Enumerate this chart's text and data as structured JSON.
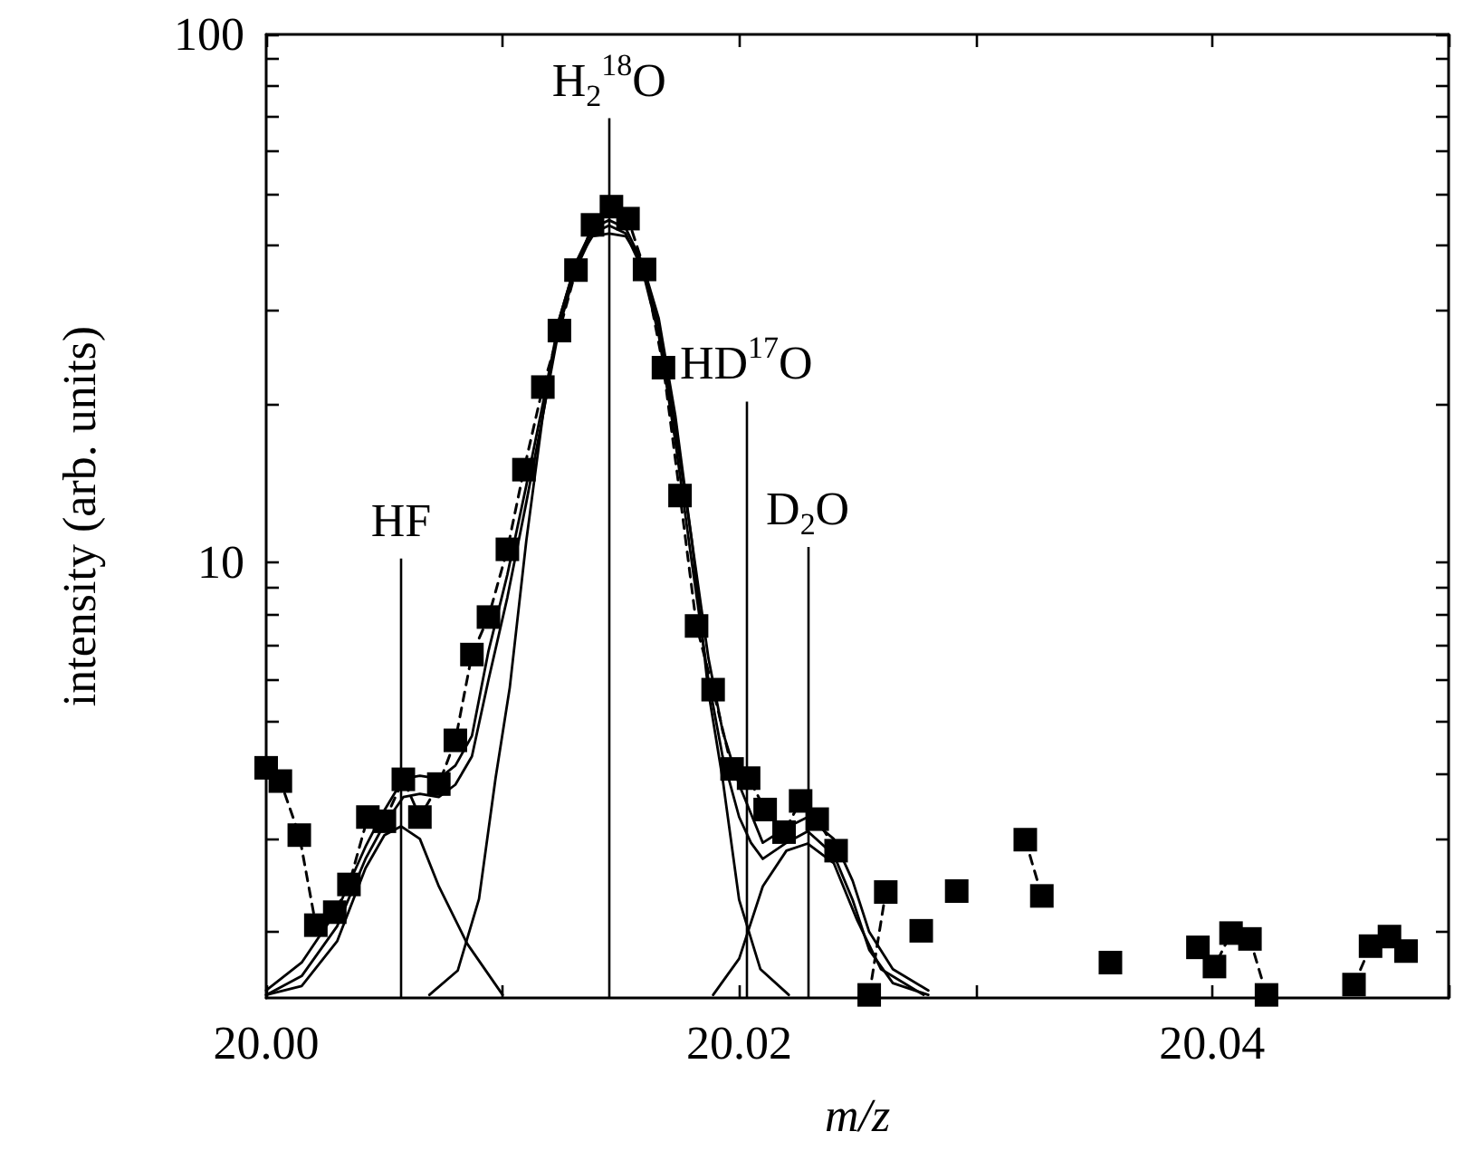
{
  "chart_data": {
    "type": "line",
    "xlabel": "m/z",
    "ylabel": "intensity (arb. units)",
    "log": "y",
    "grid": false,
    "xlim": [
      20.0,
      20.05
    ],
    "xticks": [
      {
        "value": 20.0,
        "label": "20.00"
      },
      {
        "value": 20.01,
        "label": null
      },
      {
        "value": 20.02,
        "label": "20.02"
      },
      {
        "value": 20.03,
        "label": null
      },
      {
        "value": 20.04,
        "label": "20.04"
      },
      {
        "value": 20.05,
        "label": null
      }
    ],
    "ylim": [
      1.5,
      100
    ],
    "yticks": [
      {
        "value": 2,
        "label": null
      },
      {
        "value": 3,
        "label": null
      },
      {
        "value": 4,
        "label": null
      },
      {
        "value": 5,
        "label": null
      },
      {
        "value": 6,
        "label": null
      },
      {
        "value": 7,
        "label": null
      },
      {
        "value": 8,
        "label": null
      },
      {
        "value": 9,
        "label": null
      },
      10,
      {
        "value": 20,
        "label": null
      },
      {
        "value": 30,
        "label": null
      },
      {
        "value": 40,
        "label": null
      },
      {
        "value": 50,
        "label": null
      },
      {
        "value": 60,
        "label": null
      },
      {
        "value": 70,
        "label": null
      },
      {
        "value": 80,
        "label": null
      },
      {
        "value": 90,
        "label": null
      },
      100
    ],
    "ref_lines": [
      {
        "axis": "x",
        "value": 20.0057,
        "label": "HF",
        "color": "#000000"
      },
      {
        "axis": "x",
        "value": 20.0145,
        "label": "H$_{2}$$^{18}$O",
        "color": "#000000"
      },
      {
        "axis": "x",
        "value": 20.0203,
        "label": "HD$^{17}$O",
        "color": "#000000"
      },
      {
        "axis": "x",
        "value": 20.0229,
        "label": "D$_{2}$O",
        "color": "#000000"
      }
    ],
    "series": [
      {
        "color": "#000000",
        "marker": "none",
        "line_style": "solid",
        "x": [
          20.0,
          20.0015,
          20.003,
          20.0042,
          20.005,
          20.0057,
          20.0065,
          20.0073,
          20.0085,
          20.01
        ],
        "values": [
          1.52,
          1.58,
          1.92,
          2.64,
          3.05,
          3.17,
          3.0,
          2.44,
          1.9,
          1.52
        ]
      },
      {
        "color": "#000000",
        "marker": "none",
        "line_style": "solid",
        "x": [
          20.0069,
          20.0081,
          20.009,
          20.0097,
          20.0103,
          20.011,
          20.0117,
          20.0124,
          20.0131,
          20.0138,
          20.0145,
          20.0152,
          20.0159,
          20.0166,
          20.0173,
          20.018,
          20.0187,
          20.0193,
          20.02,
          20.0209,
          20.0221
        ],
        "values": [
          1.52,
          1.69,
          2.31,
          3.91,
          5.8,
          11,
          19,
          29,
          37,
          41.5,
          42,
          41.5,
          37,
          29,
          19,
          11,
          5.7,
          3.9,
          2.3,
          1.7,
          1.52
        ]
      },
      {
        "color": "#000000",
        "marker": "none",
        "line_style": "solid",
        "x": [
          20.0189,
          20.02,
          20.021,
          20.022,
          20.0229,
          20.024,
          20.025,
          20.026,
          20.0278
        ],
        "values": [
          1.52,
          1.78,
          2.44,
          2.85,
          2.94,
          2.7,
          2.1,
          1.7,
          1.52
        ]
      },
      {
        "color": "#000000",
        "marker": "none",
        "line_style": "solid",
        "x": [
          20.0,
          20.0015,
          20.003,
          20.0042,
          20.005,
          20.0058,
          20.0065,
          20.0073,
          20.008,
          20.0087,
          20.0094,
          20.0102,
          20.011,
          20.0117,
          20.0124,
          20.0131,
          20.0138,
          20.0145,
          20.0152,
          20.0159,
          20.0166,
          20.0173,
          20.018,
          20.0187,
          20.0193,
          20.02,
          20.0205,
          20.021,
          20.022,
          20.0229,
          20.024,
          20.0248,
          20.0255,
          20.0265,
          20.028
        ],
        "values": [
          1.55,
          1.75,
          2.2,
          2.9,
          3.4,
          3.9,
          3.95,
          3.9,
          4.13,
          4.7,
          6.8,
          9.5,
          14,
          20,
          29,
          37,
          43,
          44.5,
          43,
          37,
          28,
          18,
          11,
          6.6,
          4.8,
          3.8,
          3.35,
          2.95,
          3.15,
          3.3,
          3.0,
          2.5,
          2.0,
          1.7,
          1.55
        ]
      },
      {
        "color": "#000000",
        "marker": "none",
        "line_style": "solid",
        "x": [
          20.0,
          20.0015,
          20.003,
          20.0042,
          20.005,
          20.0058,
          20.0065,
          20.0073,
          20.008,
          20.0087,
          20.0094,
          20.0102,
          20.011,
          20.0117,
          20.0124,
          20.0131,
          20.0138,
          20.0145,
          20.0152,
          20.0159,
          20.0166,
          20.0173,
          20.018,
          20.0187,
          20.0193,
          20.02,
          20.0205,
          20.021,
          20.022,
          20.0229,
          20.024,
          20.0248,
          20.0255,
          20.0265,
          20.028
        ],
        "values": [
          1.52,
          1.65,
          2.05,
          2.75,
          3.2,
          3.6,
          3.65,
          3.6,
          3.8,
          4.3,
          6.0,
          8.6,
          13,
          19,
          28,
          36,
          42,
          43.5,
          42,
          36,
          27,
          17,
          10,
          6.0,
          4.3,
          3.3,
          2.95,
          2.75,
          2.95,
          3.1,
          2.8,
          2.3,
          1.85,
          1.6,
          1.52
        ]
      },
      {
        "color": "#000000",
        "marker": "square",
        "line_style": "dashed",
        "x": [
          20.0,
          20.0006,
          20.0014,
          20.0021,
          20.0029,
          20.0035,
          20.0043,
          20.005,
          20.0058,
          20.0065,
          20.0073,
          20.008,
          20.0087,
          20.0094,
          20.0102,
          20.0109,
          20.0117,
          20.0124,
          20.0131,
          20.0138,
          20.0146,
          20.0153,
          20.016,
          20.0168,
          20.0175,
          20.0182,
          20.0189,
          20.0197,
          20.0204,
          20.0211,
          20.0219,
          20.0226,
          20.0233,
          20.0241,
          20.0248,
          20.0255,
          20.0262,
          20.027,
          20.0277,
          20.0284,
          20.0292,
          20.0299,
          20.0306,
          20.0314,
          20.0321,
          20.0328,
          20.0336,
          20.0343,
          20.035,
          20.0357,
          20.0365,
          20.0372,
          20.0379,
          20.0387,
          20.0394,
          20.0401,
          20.0408,
          20.0416,
          20.0423,
          20.043,
          20.0438,
          20.0445,
          20.0452,
          20.046,
          20.0467,
          20.0475,
          20.0482
        ],
        "values": [
          4.09,
          3.86,
          3.05,
          2.06,
          2.18,
          2.46,
          3.3,
          3.24,
          3.89,
          3.3,
          3.81,
          4.61,
          6.7,
          7.89,
          10.6,
          15.0,
          21.5,
          27.5,
          35.8,
          43.6,
          47.2,
          44.8,
          35.9,
          23.4,
          13.4,
          7.59,
          5.75,
          4.07,
          3.91,
          3.41,
          3.09,
          3.54,
          3.27,
          2.85,
          null,
          1.52,
          2.38,
          null,
          2.01,
          null,
          2.39,
          null,
          null,
          null,
          2.99,
          2.34,
          null,
          null,
          null,
          1.75,
          null,
          null,
          null,
          null,
          1.87,
          1.72,
          1.99,
          1.94,
          1.52,
          null,
          null,
          null,
          null,
          1.59,
          1.88,
          1.96,
          1.84
        ]
      }
    ]
  }
}
